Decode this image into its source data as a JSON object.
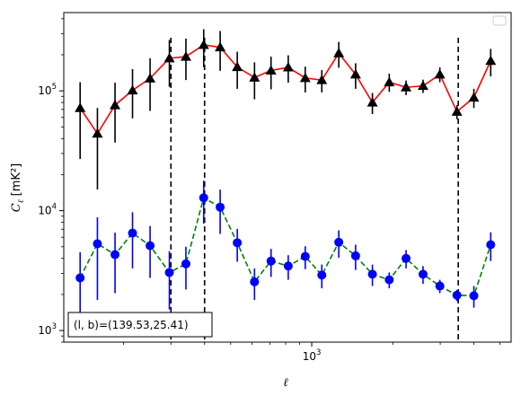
{
  "chart_data": {
    "type": "scatter",
    "xlabel": "ℓ",
    "ylabel_main": "C",
    "ylabel_sub": "ℓ",
    "ylabel_unit": "[mK²]",
    "xscale": "log",
    "yscale": "log",
    "xlim": [
      120,
      5500
    ],
    "ylim": [
      800,
      450000
    ],
    "grid": false,
    "legend": "top-right (empty)",
    "y_ticks": [
      {
        "value": 1000,
        "base": "10",
        "exp": "3"
      },
      {
        "value": 10000,
        "base": "10",
        "exp": "4"
      },
      {
        "value": 100000,
        "base": "10",
        "exp": "5"
      }
    ],
    "x_ticks": [
      {
        "value": 1000,
        "base": "10",
        "exp": "3"
      }
    ],
    "vlines": [
      300,
      400,
      3500
    ],
    "annotation": "(l, b)=(139.53,25.41)",
    "series": [
      {
        "color": "#ff0000",
        "linestyle": "solid",
        "marker": "triangle",
        "marker_color": "#000000",
        "errorbar_color": "#000000",
        "points": [
          {
            "x": 138,
            "y": 72000,
            "lo": 27000,
            "hi": 118000
          },
          {
            "x": 160,
            "y": 44000,
            "lo": 15000,
            "hi": 72000
          },
          {
            "x": 186,
            "y": 76000,
            "lo": 37000,
            "hi": 117000
          },
          {
            "x": 216,
            "y": 101000,
            "lo": 59000,
            "hi": 152000
          },
          {
            "x": 251,
            "y": 127000,
            "lo": 68000,
            "hi": 187000
          },
          {
            "x": 296,
            "y": 187000,
            "lo": 108000,
            "hi": 266000
          },
          {
            "x": 341,
            "y": 193000,
            "lo": 123000,
            "hi": 273000
          },
          {
            "x": 397,
            "y": 242000,
            "lo": 158000,
            "hi": 327000
          },
          {
            "x": 457,
            "y": 231000,
            "lo": 147000,
            "hi": 316000
          },
          {
            "x": 529,
            "y": 158000,
            "lo": 104000,
            "hi": 212000
          },
          {
            "x": 613,
            "y": 129000,
            "lo": 85000,
            "hi": 173000
          },
          {
            "x": 706,
            "y": 148000,
            "lo": 103000,
            "hi": 193000
          },
          {
            "x": 818,
            "y": 157000,
            "lo": 117000,
            "hi": 198000
          },
          {
            "x": 946,
            "y": 128000,
            "lo": 97000,
            "hi": 159000
          },
          {
            "x": 1090,
            "y": 123000,
            "lo": 97000,
            "hi": 149000
          },
          {
            "x": 1260,
            "y": 206000,
            "lo": 156000,
            "hi": 256000
          },
          {
            "x": 1455,
            "y": 137000,
            "lo": 104000,
            "hi": 170000
          },
          {
            "x": 1680,
            "y": 80000,
            "lo": 64000,
            "hi": 96000
          },
          {
            "x": 1940,
            "y": 118000,
            "lo": 98000,
            "hi": 139000
          },
          {
            "x": 2240,
            "y": 107000,
            "lo": 92000,
            "hi": 122000
          },
          {
            "x": 2590,
            "y": 110000,
            "lo": 96000,
            "hi": 124000
          },
          {
            "x": 2990,
            "y": 137000,
            "lo": 118000,
            "hi": 157000
          },
          {
            "x": 3460,
            "y": 67000,
            "lo": 58000,
            "hi": 76000
          },
          {
            "x": 4000,
            "y": 88000,
            "lo": 72000,
            "hi": 104000
          },
          {
            "x": 4620,
            "y": 178000,
            "lo": 132000,
            "hi": 224000
          }
        ]
      },
      {
        "color": "#008000",
        "linestyle": "dashed",
        "marker": "circle",
        "marker_color": "#0000ff",
        "errorbar_color": "#0000ff",
        "points": [
          {
            "x": 138,
            "y": 2750,
            "lo": 1000,
            "hi": 4500
          },
          {
            "x": 160,
            "y": 5300,
            "lo": 1800,
            "hi": 8800
          },
          {
            "x": 186,
            "y": 4300,
            "lo": 2050,
            "hi": 6550
          },
          {
            "x": 216,
            "y": 6500,
            "lo": 3300,
            "hi": 9700
          },
          {
            "x": 251,
            "y": 5100,
            "lo": 2750,
            "hi": 7450
          },
          {
            "x": 296,
            "y": 3050,
            "lo": 1500,
            "hi": 4600
          },
          {
            "x": 341,
            "y": 3600,
            "lo": 2200,
            "hi": 5000
          },
          {
            "x": 397,
            "y": 12800,
            "lo": 7800,
            "hi": 17800
          },
          {
            "x": 457,
            "y": 10700,
            "lo": 6400,
            "hi": 15000
          },
          {
            "x": 529,
            "y": 5400,
            "lo": 3750,
            "hi": 7050
          },
          {
            "x": 613,
            "y": 2550,
            "lo": 1800,
            "hi": 3300
          },
          {
            "x": 706,
            "y": 3800,
            "lo": 2800,
            "hi": 4800
          },
          {
            "x": 818,
            "y": 3450,
            "lo": 2650,
            "hi": 4250
          },
          {
            "x": 946,
            "y": 4150,
            "lo": 3250,
            "hi": 5050
          },
          {
            "x": 1090,
            "y": 2900,
            "lo": 2250,
            "hi": 3550
          },
          {
            "x": 1260,
            "y": 5450,
            "lo": 4050,
            "hi": 6850
          },
          {
            "x": 1455,
            "y": 4200,
            "lo": 3200,
            "hi": 5200
          },
          {
            "x": 1680,
            "y": 2950,
            "lo": 2350,
            "hi": 3550
          },
          {
            "x": 1940,
            "y": 2650,
            "lo": 2250,
            "hi": 3050
          },
          {
            "x": 2240,
            "y": 4000,
            "lo": 3300,
            "hi": 4700
          },
          {
            "x": 2590,
            "y": 2950,
            "lo": 2450,
            "hi": 3450
          },
          {
            "x": 2990,
            "y": 2350,
            "lo": 2050,
            "hi": 2650
          },
          {
            "x": 3460,
            "y": 1970,
            "lo": 1760,
            "hi": 2180
          },
          {
            "x": 4000,
            "y": 1950,
            "lo": 1550,
            "hi": 2350
          },
          {
            "x": 4620,
            "y": 5200,
            "lo": 3800,
            "hi": 6600
          }
        ]
      }
    ]
  }
}
